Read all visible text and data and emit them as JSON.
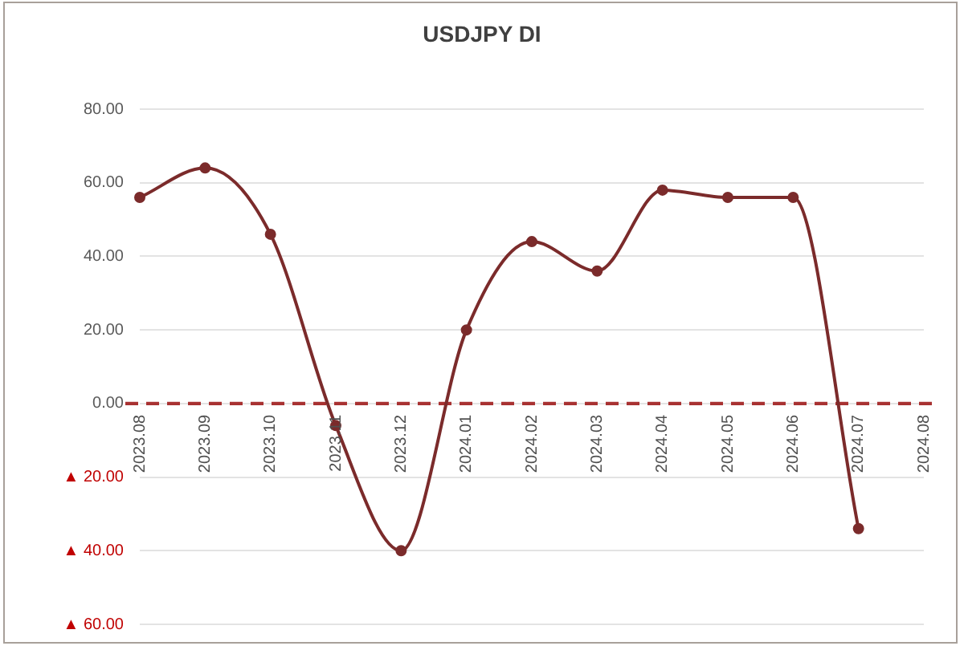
{
  "chart_data": {
    "type": "line",
    "title": "USDJPY DI",
    "categories": [
      "2023.08",
      "2023.09",
      "2023.10",
      "2023.11",
      "2023.12",
      "2024.01",
      "2024.02",
      "2024.03",
      "2024.04",
      "2024.05",
      "2024.06",
      "2024.07",
      "2024.08"
    ],
    "series": [
      {
        "color": "#7b2b2b",
        "values": [
          56,
          64,
          46,
          -6,
          -40,
          20,
          44,
          36,
          58,
          56,
          56,
          -34,
          null
        ]
      }
    ],
    "ylim": [
      -60,
      80
    ],
    "yticks": [
      {
        "value": -60,
        "label": "▲ 60.00"
      },
      {
        "value": -40,
        "label": "▲ 40.00"
      },
      {
        "value": -20,
        "label": "▲ 20.00"
      },
      {
        "value": 0,
        "label": "0.00"
      },
      {
        "value": 20,
        "label": "20.00"
      },
      {
        "value": 40,
        "label": "40.00"
      },
      {
        "value": 60,
        "label": "60.00"
      },
      {
        "value": 80,
        "label": "80.00"
      }
    ],
    "grid": "y",
    "marker": "circle",
    "line_style": "solid",
    "ref_lines": [
      {
        "axis": "y",
        "value": 0,
        "color": "#a83232",
        "line_style": "dashed"
      }
    ]
  }
}
